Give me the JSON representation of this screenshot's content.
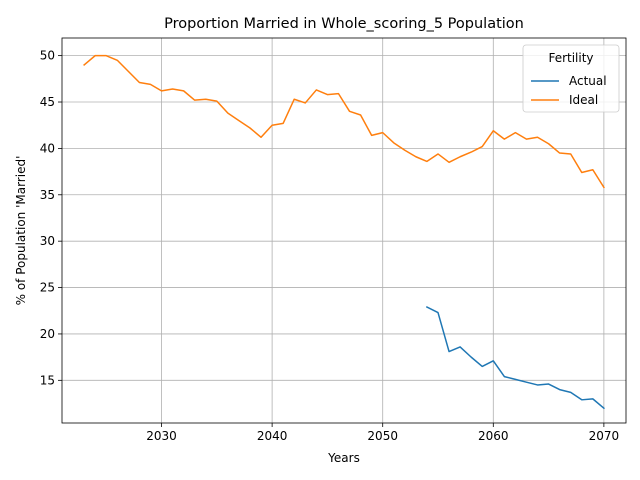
{
  "chart_data": {
    "type": "line",
    "title": "Proportion Married in Whole_scoring_5 Population",
    "xlabel": "Years",
    "ylabel": "% of Population 'Married'",
    "xlim": [
      2021,
      2072
    ],
    "ylim": [
      10.4,
      51.9
    ],
    "xticks": [
      2030,
      2040,
      2050,
      2060,
      2070
    ],
    "yticks": [
      15,
      20,
      25,
      30,
      35,
      40,
      45,
      50
    ],
    "grid": true,
    "legend": {
      "title": "Fertility",
      "placement": "top-right"
    },
    "series": [
      {
        "name": "Actual",
        "color": "#1f77b4",
        "x": [
          2054,
          2055,
          2056,
          2057,
          2058,
          2059,
          2060,
          2061,
          2062,
          2063,
          2064,
          2065,
          2066,
          2067,
          2068,
          2069,
          2070
        ],
        "values": [
          22.9,
          22.3,
          18.1,
          18.6,
          17.5,
          16.5,
          17.1,
          15.4,
          15.1,
          14.8,
          14.5,
          14.6,
          14.0,
          13.7,
          12.9,
          13.0,
          12.0
        ]
      },
      {
        "name": "Ideal",
        "color": "#ff7f0e",
        "x": [
          2023,
          2024,
          2025,
          2026,
          2027,
          2028,
          2029,
          2030,
          2031,
          2032,
          2033,
          2034,
          2035,
          2036,
          2037,
          2038,
          2039,
          2040,
          2041,
          2042,
          2043,
          2044,
          2045,
          2046,
          2047,
          2048,
          2049,
          2050,
          2051,
          2052,
          2053,
          2054,
          2055,
          2056,
          2057,
          2058,
          2059,
          2060,
          2061,
          2062,
          2063,
          2064,
          2065,
          2066,
          2067,
          2068,
          2069,
          2070
        ],
        "values": [
          49.0,
          50.0,
          50.0,
          49.5,
          48.3,
          47.1,
          46.9,
          46.2,
          46.4,
          46.2,
          45.2,
          45.3,
          45.1,
          43.8,
          43.0,
          42.2,
          41.2,
          42.5,
          42.7,
          45.3,
          44.9,
          46.3,
          45.8,
          45.9,
          44.0,
          43.6,
          41.4,
          41.7,
          40.6,
          39.8,
          39.1,
          38.6,
          39.4,
          38.5,
          39.1,
          39.6,
          40.2,
          41.9,
          41.0,
          41.7,
          41.0,
          41.2,
          40.5,
          39.5,
          39.4,
          37.4,
          37.7,
          35.8
        ]
      }
    ]
  }
}
